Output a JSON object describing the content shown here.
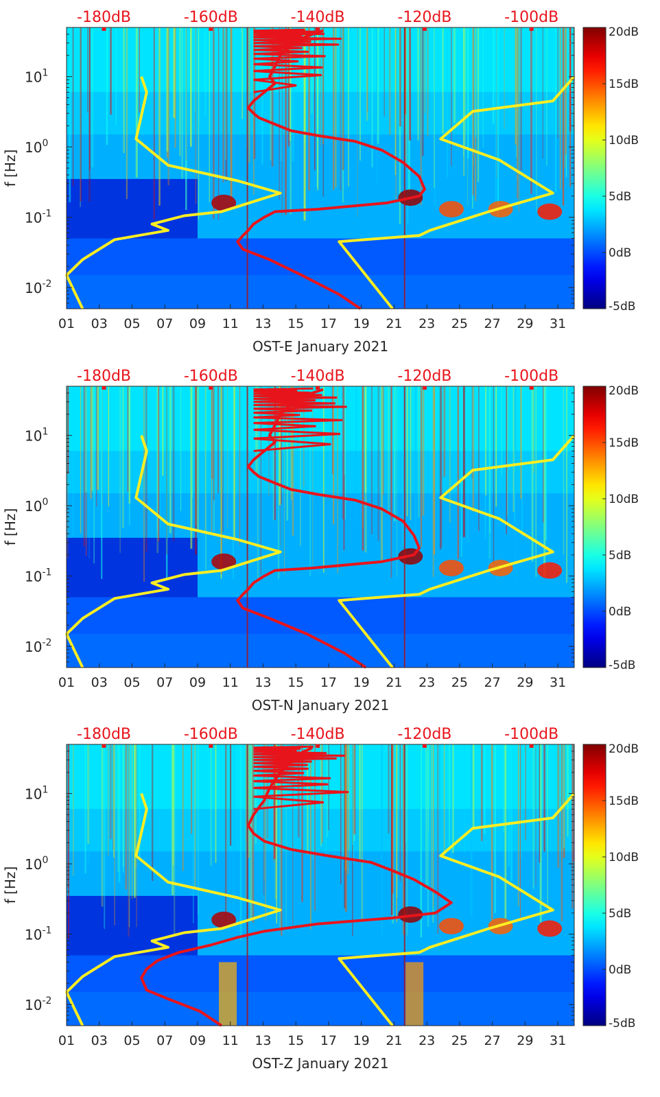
{
  "figure": {
    "y_axis_label": "f [Hz]",
    "colors": {
      "ref_curve": "#ffee22",
      "red_curve": "#e8141b",
      "top_label": "#e8141b"
    }
  },
  "chart_data": [
    {
      "type": "heatmap",
      "station": "OST-E",
      "title": "OST-E January 2021",
      "xlabel": "OST-E January 2021",
      "ylabel": "f [Hz]",
      "x_unit": "day of January 2021",
      "xlim": [
        1,
        32
      ],
      "x_ticks": [
        "01",
        "03",
        "05",
        "07",
        "09",
        "11",
        "13",
        "15",
        "17",
        "19",
        "21",
        "23",
        "25",
        "27",
        "29",
        "31"
      ],
      "y_scale": "log",
      "ylim": [
        0.005,
        50
      ],
      "y_ticks": [
        {
          "value": 0.01,
          "base": "10",
          "exp": "-2"
        },
        {
          "value": 0.1,
          "base": "10",
          "exp": "-1"
        },
        {
          "value": 1,
          "base": "10",
          "exp": "0"
        },
        {
          "value": 10,
          "base": "10",
          "exp": "1"
        }
      ],
      "top_axis_labels": [
        "-180dB",
        "-160dB",
        "-140dB",
        "-120dB",
        "-100dB"
      ],
      "top_axis_range_db": [
        -187,
        -92
      ],
      "colorbar": {
        "min": -5,
        "max": 20,
        "unit": "dB",
        "ticks": [
          "-5dB",
          "0dB",
          "5dB",
          "10dB",
          "15dB",
          "20dB"
        ]
      },
      "series": [
        {
          "name": "reference noise model (yellow)",
          "points": [
            [
              -173,
              10
            ],
            [
              -172,
              6
            ],
            [
              -174,
              1.3
            ],
            [
              -168,
              0.55
            ],
            [
              -155,
              0.33
            ],
            [
              -147,
              0.22
            ],
            [
              -158,
              0.12
            ],
            [
              -165,
              0.105
            ],
            [
              -171,
              0.08
            ],
            [
              -168,
              0.065
            ],
            [
              -178,
              0.048
            ],
            [
              -184,
              0.025
            ],
            [
              -187,
              0.015
            ],
            [
              -184,
              0.005
            ]
          ]
        },
        {
          "name": "reference noise model high (yellow)",
          "points": [
            [
              -92,
              10
            ],
            [
              -96,
              4.5
            ],
            [
              -111,
              3.2
            ],
            [
              -117,
              1.3
            ],
            [
              -106,
              0.65
            ],
            [
              -96,
              0.22
            ],
            [
              -108,
              0.12
            ],
            [
              -119,
              0.065
            ],
            [
              -121,
              0.055
            ],
            [
              -136,
              0.045
            ],
            [
              -126,
              0.005
            ]
          ]
        },
        {
          "name": "spectral level (red)",
          "points": [
            [
              -139,
              45
            ],
            [
              -141,
              40
            ],
            [
              -143,
              35
            ],
            [
              -145,
              28
            ],
            [
              -147,
              20
            ],
            [
              -148,
              14
            ],
            [
              -149,
              10
            ],
            [
              -148,
              8
            ],
            [
              -150,
              6
            ],
            [
              -152,
              4.5
            ],
            [
              -153,
              3.6
            ],
            [
              -152,
              3
            ],
            [
              -151,
              2.6
            ],
            [
              -148,
              2.1
            ],
            [
              -145,
              1.7
            ],
            [
              -140,
              1.45
            ],
            [
              -133,
              1.2
            ],
            [
              -128,
              0.9
            ],
            [
              -124,
              0.6
            ],
            [
              -121,
              0.38
            ],
            [
              -120,
              0.25
            ],
            [
              -121,
              0.2
            ],
            [
              -127,
              0.16
            ],
            [
              -140,
              0.13
            ],
            [
              -148,
              0.12
            ],
            [
              -150,
              0.1
            ],
            [
              -152,
              0.08
            ],
            [
              -153,
              0.065
            ],
            [
              -154,
              0.055
            ],
            [
              -155,
              0.045
            ],
            [
              -154,
              0.035
            ],
            [
              -149,
              0.025
            ],
            [
              -143,
              0.015
            ],
            [
              -136,
              0.008
            ],
            [
              -132,
              0.005
            ]
          ]
        }
      ]
    },
    {
      "type": "heatmap",
      "station": "OST-N",
      "title": "OST-N January 2021",
      "xlabel": "OST-N January 2021",
      "ylabel": "f [Hz]",
      "x_unit": "day of January 2021",
      "xlim": [
        1,
        32
      ],
      "x_ticks": [
        "01",
        "03",
        "05",
        "07",
        "09",
        "11",
        "13",
        "15",
        "17",
        "19",
        "21",
        "23",
        "25",
        "27",
        "29",
        "31"
      ],
      "y_scale": "log",
      "ylim": [
        0.005,
        50
      ],
      "y_ticks": [
        {
          "value": 0.01,
          "base": "10",
          "exp": "-2"
        },
        {
          "value": 0.1,
          "base": "10",
          "exp": "-1"
        },
        {
          "value": 1,
          "base": "10",
          "exp": "0"
        },
        {
          "value": 10,
          "base": "10",
          "exp": "1"
        }
      ],
      "top_axis_labels": [
        "-180dB",
        "-160dB",
        "-140dB",
        "-120dB",
        "-100dB"
      ],
      "top_axis_range_db": [
        -187,
        -92
      ],
      "colorbar": {
        "min": -5,
        "max": 20,
        "unit": "dB",
        "ticks": [
          "-5dB",
          "0dB",
          "5dB",
          "10dB",
          "15dB",
          "20dB"
        ]
      },
      "series": [
        {
          "name": "reference noise model (yellow)",
          "points": [
            [
              -173,
              10
            ],
            [
              -172,
              6
            ],
            [
              -174,
              1.3
            ],
            [
              -168,
              0.55
            ],
            [
              -155,
              0.33
            ],
            [
              -147,
              0.22
            ],
            [
              -158,
              0.12
            ],
            [
              -165,
              0.105
            ],
            [
              -171,
              0.08
            ],
            [
              -168,
              0.065
            ],
            [
              -178,
              0.048
            ],
            [
              -184,
              0.025
            ],
            [
              -187,
              0.015
            ],
            [
              -184,
              0.005
            ]
          ]
        },
        {
          "name": "reference noise model high (yellow)",
          "points": [
            [
              -92,
              10
            ],
            [
              -96,
              4.5
            ],
            [
              -111,
              3.2
            ],
            [
              -117,
              1.3
            ],
            [
              -106,
              0.65
            ],
            [
              -96,
              0.22
            ],
            [
              -108,
              0.12
            ],
            [
              -119,
              0.065
            ],
            [
              -121,
              0.055
            ],
            [
              -136,
              0.045
            ],
            [
              -126,
              0.005
            ]
          ]
        },
        {
          "name": "spectral level (red)",
          "points": [
            [
              -139,
              45
            ],
            [
              -141,
              40
            ],
            [
              -143,
              35
            ],
            [
              -145,
              28
            ],
            [
              -147,
              20
            ],
            [
              -148,
              14
            ],
            [
              -149,
              10
            ],
            [
              -148,
              8
            ],
            [
              -150,
              6
            ],
            [
              -152,
              4.5
            ],
            [
              -153,
              3.6
            ],
            [
              -152,
              3
            ],
            [
              -151,
              2.6
            ],
            [
              -148,
              2.1
            ],
            [
              -145,
              1.7
            ],
            [
              -140,
              1.45
            ],
            [
              -133,
              1.2
            ],
            [
              -128,
              0.9
            ],
            [
              -124,
              0.6
            ],
            [
              -122,
              0.38
            ],
            [
              -121,
              0.25
            ],
            [
              -122,
              0.2
            ],
            [
              -128,
              0.16
            ],
            [
              -141,
              0.13
            ],
            [
              -148,
              0.12
            ],
            [
              -150,
              0.1
            ],
            [
              -152,
              0.08
            ],
            [
              -153,
              0.065
            ],
            [
              -154,
              0.055
            ],
            [
              -155,
              0.045
            ],
            [
              -154,
              0.035
            ],
            [
              -149,
              0.025
            ],
            [
              -142,
              0.015
            ],
            [
              -135,
              0.008
            ],
            [
              -131,
              0.005
            ]
          ]
        }
      ]
    },
    {
      "type": "heatmap",
      "station": "OST-Z",
      "title": "OST-Z January 2021",
      "xlabel": "OST-Z January 2021",
      "ylabel": "f [Hz]",
      "x_unit": "day of January 2021",
      "xlim": [
        1,
        32
      ],
      "x_ticks": [
        "01",
        "03",
        "05",
        "07",
        "09",
        "11",
        "13",
        "15",
        "17",
        "19",
        "21",
        "23",
        "25",
        "27",
        "29",
        "31"
      ],
      "y_scale": "log",
      "ylim": [
        0.005,
        50
      ],
      "y_ticks": [
        {
          "value": 0.01,
          "base": "10",
          "exp": "-2"
        },
        {
          "value": 0.1,
          "base": "10",
          "exp": "-1"
        },
        {
          "value": 1,
          "base": "10",
          "exp": "0"
        },
        {
          "value": 10,
          "base": "10",
          "exp": "1"
        }
      ],
      "top_axis_labels": [
        "-180dB",
        "-160dB",
        "-140dB",
        "-120dB",
        "-100dB"
      ],
      "top_axis_range_db": [
        -187,
        -92
      ],
      "colorbar": {
        "min": -5,
        "max": 20,
        "unit": "dB",
        "ticks": [
          "-5dB",
          "0dB",
          "5dB",
          "10dB",
          "15dB",
          "20dB"
        ]
      },
      "series": [
        {
          "name": "reference noise model (yellow)",
          "points": [
            [
              -173,
              10
            ],
            [
              -172,
              6
            ],
            [
              -174,
              1.3
            ],
            [
              -168,
              0.55
            ],
            [
              -155,
              0.33
            ],
            [
              -147,
              0.22
            ],
            [
              -158,
              0.12
            ],
            [
              -165,
              0.105
            ],
            [
              -171,
              0.08
            ],
            [
              -168,
              0.065
            ],
            [
              -178,
              0.048
            ],
            [
              -184,
              0.025
            ],
            [
              -187,
              0.015
            ],
            [
              -184,
              0.005
            ]
          ]
        },
        {
          "name": "reference noise model high (yellow)",
          "points": [
            [
              -92,
              10
            ],
            [
              -96,
              4.5
            ],
            [
              -111,
              3.2
            ],
            [
              -117,
              1.3
            ],
            [
              -106,
              0.65
            ],
            [
              -96,
              0.22
            ],
            [
              -108,
              0.12
            ],
            [
              -119,
              0.065
            ],
            [
              -121,
              0.055
            ],
            [
              -136,
              0.045
            ],
            [
              -126,
              0.005
            ]
          ]
        },
        {
          "name": "spectral level (red)",
          "points": [
            [
              -141,
              45
            ],
            [
              -143,
              38
            ],
            [
              -145,
              28
            ],
            [
              -147,
              20
            ],
            [
              -149,
              12
            ],
            [
              -150,
              8
            ],
            [
              -152,
              5
            ],
            [
              -153,
              3.5
            ],
            [
              -152,
              2.7
            ],
            [
              -150,
              2.1
            ],
            [
              -145,
              1.6
            ],
            [
              -138,
              1.3
            ],
            [
              -130,
              1.05
            ],
            [
              -126,
              0.8
            ],
            [
              -122,
              0.6
            ],
            [
              -118,
              0.4
            ],
            [
              -115,
              0.28
            ],
            [
              -118,
              0.2
            ],
            [
              -126,
              0.17
            ],
            [
              -140,
              0.14
            ],
            [
              -150,
              0.11
            ],
            [
              -155,
              0.09
            ],
            [
              -160,
              0.07
            ],
            [
              -166,
              0.055
            ],
            [
              -170,
              0.042
            ],
            [
              -172,
              0.032
            ],
            [
              -173,
              0.024
            ],
            [
              -172,
              0.016
            ],
            [
              -168,
              0.012
            ],
            [
              -162,
              0.008
            ],
            [
              -158,
              0.005
            ]
          ]
        }
      ]
    }
  ]
}
